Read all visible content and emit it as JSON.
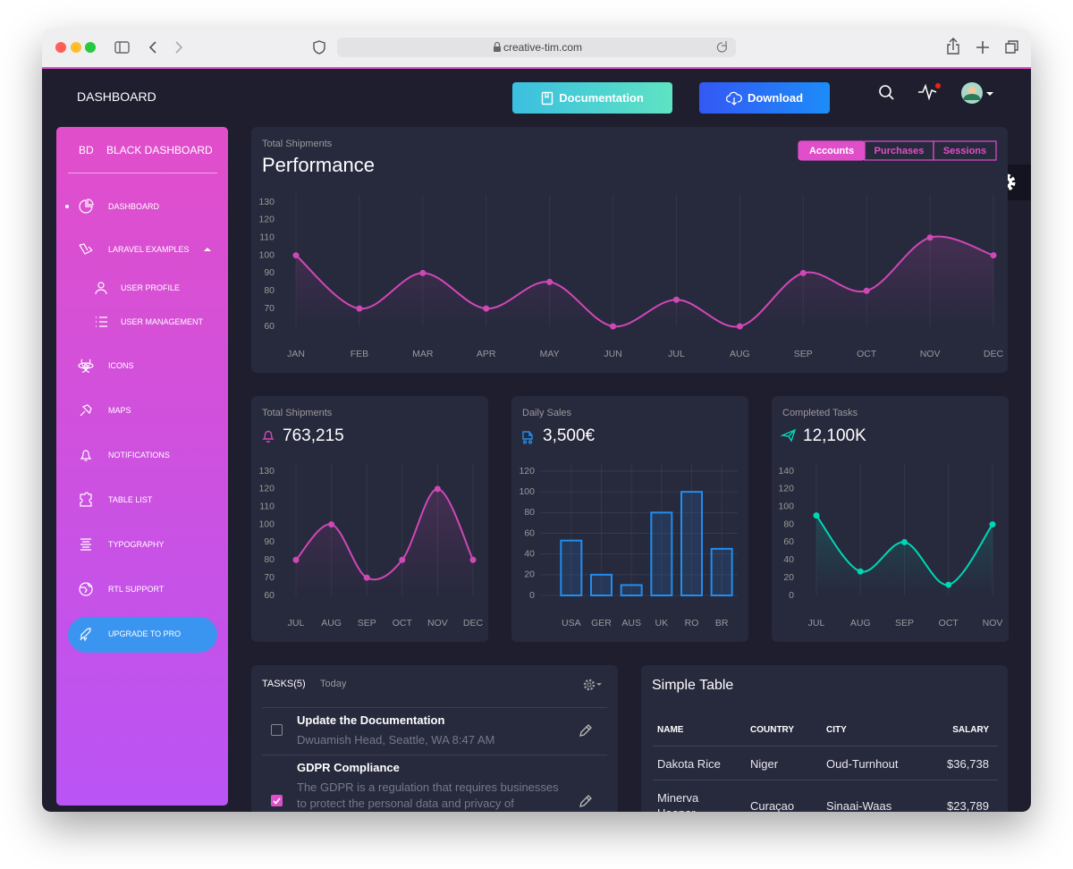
{
  "browser": {
    "url": "creative-tim.com"
  },
  "navbar": {
    "brand": "DASHBOARD",
    "buttons": [
      "Documentation",
      "Download"
    ]
  },
  "sidebar": {
    "logo_mini": "BD",
    "logo": "BLACK DASHBOARD",
    "items": [
      "DASHBOARD",
      "LARAVEL EXAMPLES",
      "USER PROFILE",
      "USER MANAGEMENT",
      "ICONS",
      "MAPS",
      "NOTIFICATIONS",
      "TABLE LIST",
      "TYPOGRAPHY",
      "RTL SUPPORT",
      "UPGRADE TO PRO"
    ]
  },
  "chart_data": [
    {
      "type": "line",
      "subtitle": "Total Shipments",
      "title": "Performance",
      "tabs": [
        "Accounts",
        "Purchases",
        "Sessions"
      ],
      "categories": [
        "JAN",
        "FEB",
        "MAR",
        "APR",
        "MAY",
        "JUN",
        "JUL",
        "AUG",
        "SEP",
        "OCT",
        "NOV",
        "DEC"
      ],
      "values": [
        100,
        70,
        90,
        70,
        85,
        60,
        75,
        60,
        90,
        80,
        110,
        100
      ],
      "color": "#d048b6",
      "ylim": [
        60,
        130
      ],
      "yticks": [
        60,
        70,
        80,
        90,
        100,
        110,
        120,
        130
      ]
    },
    {
      "type": "line",
      "subtitle": "Total Shipments",
      "title": "763,215",
      "categories": [
        "JUL",
        "AUG",
        "SEP",
        "OCT",
        "NOV",
        "DEC"
      ],
      "values": [
        80,
        100,
        70,
        80,
        120,
        80
      ],
      "color": "#d048b6",
      "ylim": [
        60,
        130
      ],
      "yticks": [
        60,
        70,
        80,
        90,
        100,
        110,
        120,
        130
      ]
    },
    {
      "type": "bar",
      "subtitle": "Daily Sales",
      "title": "3,500€",
      "categories": [
        "USA",
        "GER",
        "AUS",
        "UK",
        "RO",
        "BR"
      ],
      "values": [
        53,
        20,
        10,
        80,
        100,
        45
      ],
      "color": "#1f8ef1",
      "ylim": [
        0,
        120
      ],
      "yticks": [
        0,
        20,
        40,
        60,
        80,
        100,
        120
      ],
      "grid": true
    },
    {
      "type": "line",
      "subtitle": "Completed Tasks",
      "title": "12,100K",
      "categories": [
        "JUL",
        "AUG",
        "SEP",
        "OCT",
        "NOV"
      ],
      "values": [
        90,
        27,
        60,
        12,
        80
      ],
      "color": "#00d6b4",
      "ylim": [
        0,
        140
      ],
      "yticks": [
        0,
        20,
        40,
        60,
        80,
        100,
        120,
        140
      ]
    }
  ],
  "tasks": {
    "title": "TASKS(5)",
    "filter": "Today",
    "items": [
      {
        "title": "Update the Documentation",
        "text": "Dwuamish Head, Seattle, WA 8:47 AM",
        "checked": false
      },
      {
        "title": "GDPR Compliance",
        "text": "The GDPR is a regulation that requires businesses to protect the personal data and privacy of",
        "checked": true
      }
    ]
  },
  "table": {
    "title": "Simple Table",
    "headers": [
      "NAME",
      "COUNTRY",
      "CITY",
      "SALARY"
    ],
    "rows": [
      [
        "Dakota Rice",
        "Niger",
        "Oud-Turnhout",
        "$36,738"
      ],
      [
        "Minerva Hooper",
        "Curaçao",
        "Sinaai-Waas",
        "$23,789"
      ]
    ]
  }
}
